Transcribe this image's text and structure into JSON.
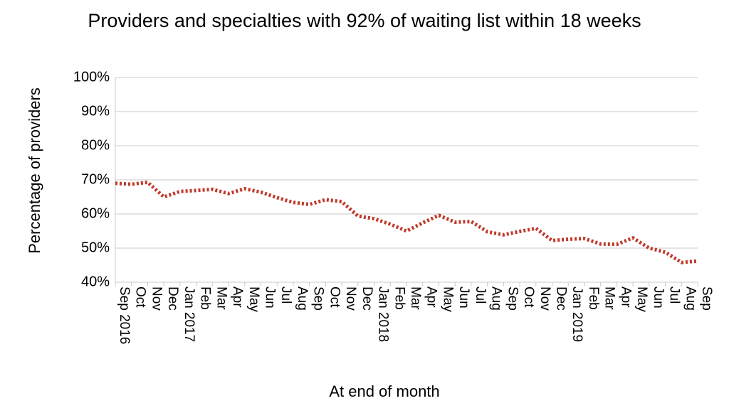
{
  "chart_data": {
    "type": "line",
    "title": "Providers and specialties with 92% of waiting list within 18 weeks",
    "xlabel": "At end of month",
    "ylabel": "Percentage of providers",
    "ylim": [
      40,
      100
    ],
    "y_ticks": [
      "40%",
      "50%",
      "60%",
      "70%",
      "80%",
      "90%",
      "100%"
    ],
    "grid": "horizontal",
    "line_color": "#c0392b",
    "line_style": "dotted",
    "categories": [
      "Sep 2016",
      "Oct",
      "Nov",
      "Dec",
      "Jan 2017",
      "Feb",
      "Mar",
      "Apr",
      "May",
      "Jun",
      "Jul",
      "Aug",
      "Sep",
      "Oct",
      "Nov",
      "Dec",
      "Jan 2018",
      "Feb",
      "Mar",
      "Apr",
      "May",
      "Jun",
      "Jul",
      "Aug",
      "Sep",
      "Oct",
      "Nov",
      "Dec",
      "Jan 2019",
      "Feb",
      "Mar",
      "Apr",
      "May",
      "Jun",
      "Jul",
      "Aug",
      "Sep"
    ],
    "series": [
      {
        "values": [
          69.0,
          68.7,
          69.3,
          65.0,
          66.6,
          66.9,
          67.2,
          66.0,
          67.4,
          66.4,
          64.8,
          63.4,
          62.8,
          64.2,
          63.6,
          59.4,
          58.6,
          57.0,
          55.0,
          57.4,
          59.6,
          57.6,
          57.8,
          54.8,
          53.9,
          54.9,
          55.8,
          52.2,
          52.6,
          52.8,
          51.2,
          51.1,
          53.0,
          50.0,
          48.8,
          45.8,
          46.2
        ]
      }
    ]
  }
}
